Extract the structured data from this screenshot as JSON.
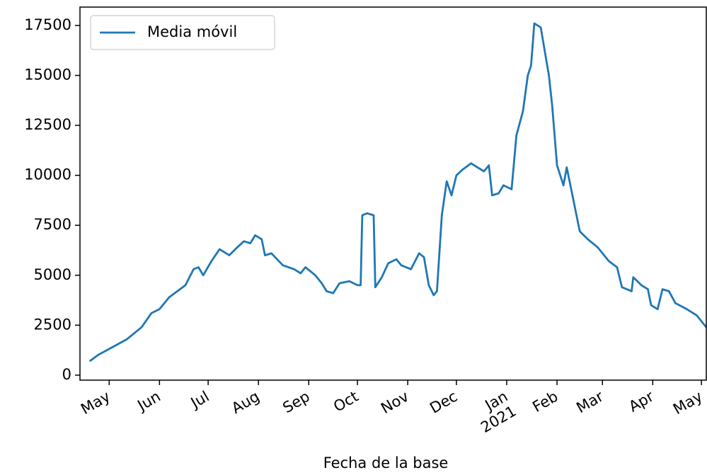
{
  "chart_data": {
    "type": "line",
    "x_label": "Fecha de la base",
    "xlim": [
      -18,
      368
    ],
    "xticks": [
      {
        "value": 0,
        "label": "May"
      },
      {
        "value": 31,
        "label": "Jun"
      },
      {
        "value": 61,
        "label": "Jul"
      },
      {
        "value": 92,
        "label": "Aug"
      },
      {
        "value": 123,
        "label": "Sep"
      },
      {
        "value": 153,
        "label": "Oct"
      },
      {
        "value": 184,
        "label": "Nov"
      },
      {
        "value": 214,
        "label": "Dec"
      },
      {
        "value": 245,
        "label": "Jan\n2021"
      },
      {
        "value": 276,
        "label": "Feb"
      },
      {
        "value": 304,
        "label": "Mar"
      },
      {
        "value": 335,
        "label": "Apr"
      },
      {
        "value": 365,
        "label": "May"
      }
    ],
    "ylim": [
      -250,
      18420
    ],
    "yticks": [
      0,
      2500,
      5000,
      7500,
      10000,
      12500,
      15000,
      17500
    ],
    "legend": "upper left",
    "x": [
      -12,
      -7,
      2,
      11,
      20,
      26,
      31,
      37,
      47,
      52,
      55,
      58,
      63,
      68,
      74,
      79,
      83,
      87,
      90,
      94,
      96,
      100,
      107,
      114,
      118,
      121,
      127,
      131,
      134,
      138,
      142,
      148,
      153,
      155,
      156,
      159,
      163,
      164,
      168,
      172,
      177,
      180,
      186,
      191,
      194,
      197,
      200,
      202,
      205,
      208,
      211,
      214,
      218,
      223,
      227,
      231,
      234,
      236,
      240,
      243,
      248,
      251,
      255,
      258,
      260,
      262,
      266,
      271,
      273,
      276,
      280,
      282,
      286,
      290,
      295,
      301,
      308,
      313,
      316,
      322,
      323,
      328,
      332,
      334,
      338,
      341,
      345,
      349,
      356,
      362,
      368
    ],
    "series": [
      {
        "name": "Media móvil",
        "color": "#1f77b4",
        "values": [
          700,
          1000,
          1400,
          1800,
          2400,
          3100,
          3300,
          3900,
          4500,
          5300,
          5400,
          5000,
          5700,
          6300,
          6000,
          6400,
          6700,
          6600,
          7000,
          6800,
          6000,
          6100,
          5500,
          5300,
          5100,
          5400,
          5000,
          4600,
          4200,
          4100,
          4600,
          4700,
          4500,
          4500,
          8000,
          8100,
          8000,
          4400,
          4900,
          5600,
          5800,
          5500,
          5300,
          6100,
          5900,
          4500,
          4000,
          4200,
          8000,
          9700,
          9000,
          10000,
          10300,
          10600,
          10400,
          10200,
          10500,
          9000,
          9100,
          9500,
          9300,
          12000,
          13200,
          15000,
          15500,
          17600,
          17400,
          15000,
          13500,
          10500,
          9500,
          10400,
          8800,
          7200,
          6800,
          6400,
          5700,
          5400,
          4400,
          4200,
          4900,
          4500,
          4300,
          3500,
          3300,
          4300,
          4200,
          3600,
          3300,
          3000,
          2400
        ]
      }
    ]
  }
}
